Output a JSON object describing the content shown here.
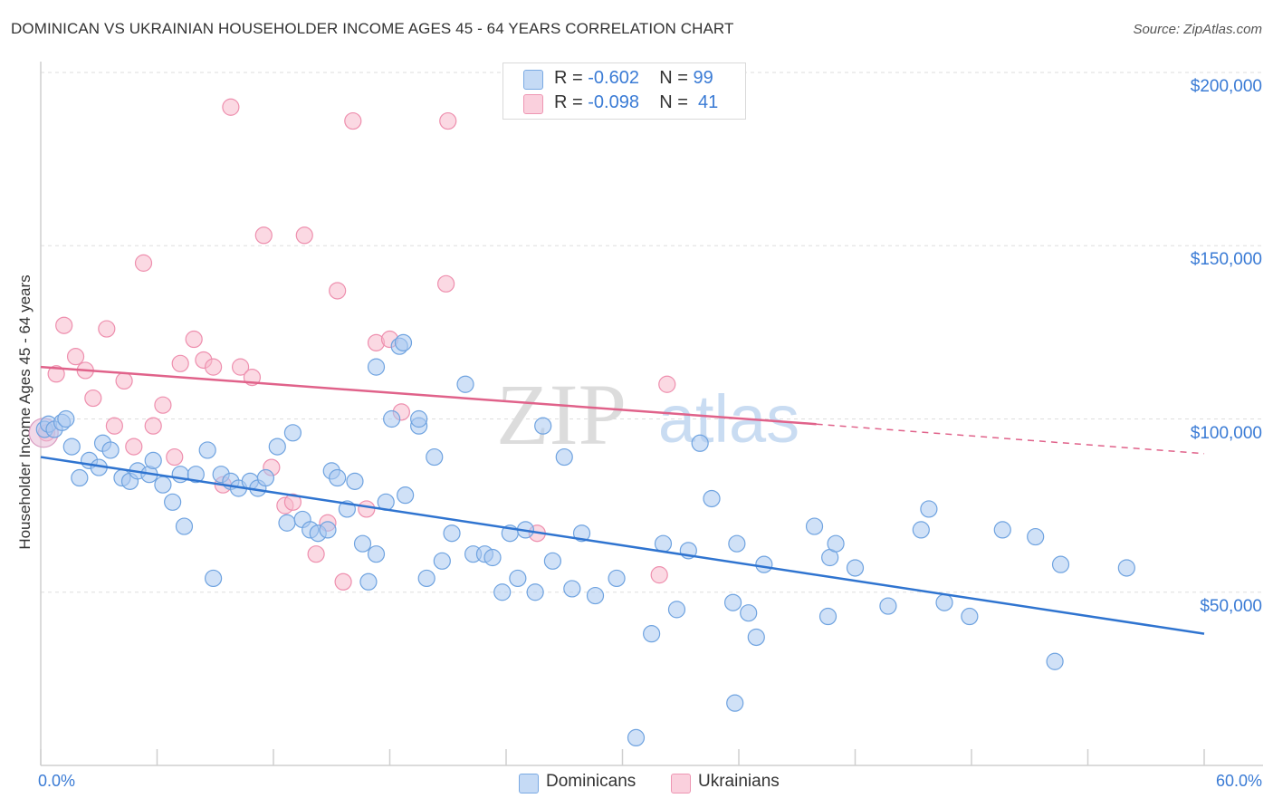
{
  "title": "DOMINICAN VS UKRAINIAN HOUSEHOLDER INCOME AGES 45 - 64 YEARS CORRELATION CHART",
  "source": "Source: ZipAtlas.com",
  "watermark": {
    "zip": "ZIP",
    "atlas": "atlas"
  },
  "legend": {
    "rows": [
      {
        "r_label": "R =",
        "r_value": "-0.602",
        "n_label": "N =",
        "n_value": "99",
        "color": "#a9c8f0"
      },
      {
        "r_label": "R =",
        "r_value": "-0.098",
        "n_label": "N =",
        "n_value": "41",
        "color": "#f7b9cc"
      }
    ]
  },
  "bottom_legend": [
    {
      "label": "Dominicans",
      "color": "#a9c8f0"
    },
    {
      "label": "Ukrainians",
      "color": "#f7b9cc"
    }
  ],
  "chart_data": {
    "type": "scatter",
    "title": "DOMINICAN VS UKRAINIAN HOUSEHOLDER INCOME AGES 45 - 64 YEARS CORRELATION CHART",
    "xlabel": "",
    "ylabel": "Householder Income Ages 45 - 64 years",
    "xlim": [
      0,
      60
    ],
    "ylim": [
      0,
      200000
    ],
    "x_tick_labels": [
      "0.0%",
      "60.0%"
    ],
    "y_tick_labels": [
      "$50,000",
      "$100,000",
      "$150,000",
      "$200,000"
    ],
    "y_ticks": [
      50000,
      100000,
      150000,
      200000
    ],
    "grid": true,
    "legend_position": "top-center",
    "series": [
      {
        "name": "Dominicans",
        "color": "#a9c8f0",
        "stroke": "#6fa3e0",
        "line_color": "#2f74d0",
        "trend": {
          "x": [
            0,
            60
          ],
          "y": [
            89000,
            38000
          ],
          "dashed_from": null
        },
        "points": [
          [
            0.2,
            97000
          ],
          [
            0.4,
            98500
          ],
          [
            0.7,
            97000
          ],
          [
            1.1,
            99000
          ],
          [
            1.3,
            100000
          ],
          [
            1.6,
            92000
          ],
          [
            2.0,
            83000
          ],
          [
            2.5,
            88000
          ],
          [
            3.0,
            86000
          ],
          [
            3.2,
            93000
          ],
          [
            3.6,
            91000
          ],
          [
            4.2,
            83000
          ],
          [
            4.6,
            82000
          ],
          [
            5.0,
            85000
          ],
          [
            5.6,
            84000
          ],
          [
            5.8,
            88000
          ],
          [
            6.3,
            81000
          ],
          [
            6.8,
            76000
          ],
          [
            7.2,
            84000
          ],
          [
            7.4,
            69000
          ],
          [
            8.0,
            84000
          ],
          [
            8.6,
            91000
          ],
          [
            8.9,
            54000
          ],
          [
            9.3,
            84000
          ],
          [
            9.8,
            82000
          ],
          [
            10.2,
            80000
          ],
          [
            10.8,
            82000
          ],
          [
            11.2,
            80000
          ],
          [
            11.6,
            83000
          ],
          [
            12.2,
            92000
          ],
          [
            12.7,
            70000
          ],
          [
            13.0,
            96000
          ],
          [
            13.5,
            71000
          ],
          [
            13.9,
            68000
          ],
          [
            14.3,
            67000
          ],
          [
            14.8,
            68000
          ],
          [
            15.0,
            85000
          ],
          [
            15.3,
            83000
          ],
          [
            15.8,
            74000
          ],
          [
            16.2,
            82000
          ],
          [
            16.6,
            64000
          ],
          [
            16.9,
            53000
          ],
          [
            17.3,
            61000
          ],
          [
            17.8,
            76000
          ],
          [
            18.1,
            100000
          ],
          [
            18.5,
            121000
          ],
          [
            18.8,
            78000
          ],
          [
            19.5,
            98000
          ],
          [
            19.9,
            54000
          ],
          [
            20.3,
            89000
          ],
          [
            20.7,
            59000
          ],
          [
            21.2,
            67000
          ],
          [
            21.9,
            110000
          ],
          [
            22.3,
            61000
          ],
          [
            22.9,
            61000
          ],
          [
            23.3,
            60000
          ],
          [
            23.8,
            50000
          ],
          [
            24.2,
            67000
          ],
          [
            24.6,
            54000
          ],
          [
            25.0,
            68000
          ],
          [
            25.5,
            50000
          ],
          [
            25.9,
            98000
          ],
          [
            26.4,
            59000
          ],
          [
            27.0,
            89000
          ],
          [
            27.4,
            51000
          ],
          [
            27.9,
            67000
          ],
          [
            28.6,
            49000
          ],
          [
            29.7,
            54000
          ],
          [
            30.7,
            8000
          ],
          [
            31.5,
            38000
          ],
          [
            32.1,
            64000
          ],
          [
            32.8,
            45000
          ],
          [
            33.4,
            62000
          ],
          [
            34.0,
            93000
          ],
          [
            34.6,
            77000
          ],
          [
            35.8,
            18000
          ],
          [
            35.7,
            47000
          ],
          [
            35.9,
            64000
          ],
          [
            36.5,
            44000
          ],
          [
            36.9,
            37000
          ],
          [
            37.3,
            58000
          ],
          [
            39.9,
            69000
          ],
          [
            40.6,
            43000
          ],
          [
            40.7,
            60000
          ],
          [
            41.0,
            64000
          ],
          [
            42.0,
            57000
          ],
          [
            43.7,
            46000
          ],
          [
            45.4,
            68000
          ],
          [
            45.8,
            74000
          ],
          [
            46.6,
            47000
          ],
          [
            47.9,
            43000
          ],
          [
            49.6,
            68000
          ],
          [
            51.3,
            66000
          ],
          [
            52.3,
            30000
          ],
          [
            52.6,
            58000
          ],
          [
            56.0,
            57000
          ],
          [
            17.3,
            115000
          ],
          [
            18.7,
            122000
          ],
          [
            19.5,
            100000
          ]
        ]
      },
      {
        "name": "Ukrainians",
        "color": "#f7b9cc",
        "stroke": "#ee8fae",
        "line_color": "#e0628a",
        "trend": {
          "x": [
            0,
            40,
            60
          ],
          "y": [
            115000,
            98500,
            90000
          ],
          "dashed_from": 40
        },
        "points": [
          [
            0.3,
            96000
          ],
          [
            0.8,
            113000
          ],
          [
            1.2,
            127000
          ],
          [
            1.8,
            118000
          ],
          [
            2.3,
            114000
          ],
          [
            2.7,
            106000
          ],
          [
            3.4,
            126000
          ],
          [
            3.8,
            98000
          ],
          [
            4.3,
            111000
          ],
          [
            4.8,
            92000
          ],
          [
            5.3,
            145000
          ],
          [
            5.8,
            98000
          ],
          [
            6.3,
            104000
          ],
          [
            6.9,
            89000
          ],
          [
            7.2,
            116000
          ],
          [
            7.9,
            123000
          ],
          [
            8.4,
            117000
          ],
          [
            8.9,
            115000
          ],
          [
            9.4,
            81000
          ],
          [
            9.8,
            190000
          ],
          [
            10.3,
            115000
          ],
          [
            10.9,
            112000
          ],
          [
            11.5,
            153000
          ],
          [
            11.9,
            86000
          ],
          [
            12.6,
            75000
          ],
          [
            13.0,
            76000
          ],
          [
            13.6,
            153000
          ],
          [
            14.2,
            61000
          ],
          [
            14.8,
            70000
          ],
          [
            15.3,
            137000
          ],
          [
            15.6,
            53000
          ],
          [
            16.1,
            186000
          ],
          [
            16.8,
            74000
          ],
          [
            17.3,
            122000
          ],
          [
            18.0,
            123000
          ],
          [
            18.6,
            102000
          ],
          [
            20.9,
            139000
          ],
          [
            21.0,
            186000
          ],
          [
            25.6,
            67000
          ],
          [
            31.9,
            55000
          ],
          [
            32.3,
            110000
          ]
        ]
      }
    ]
  }
}
